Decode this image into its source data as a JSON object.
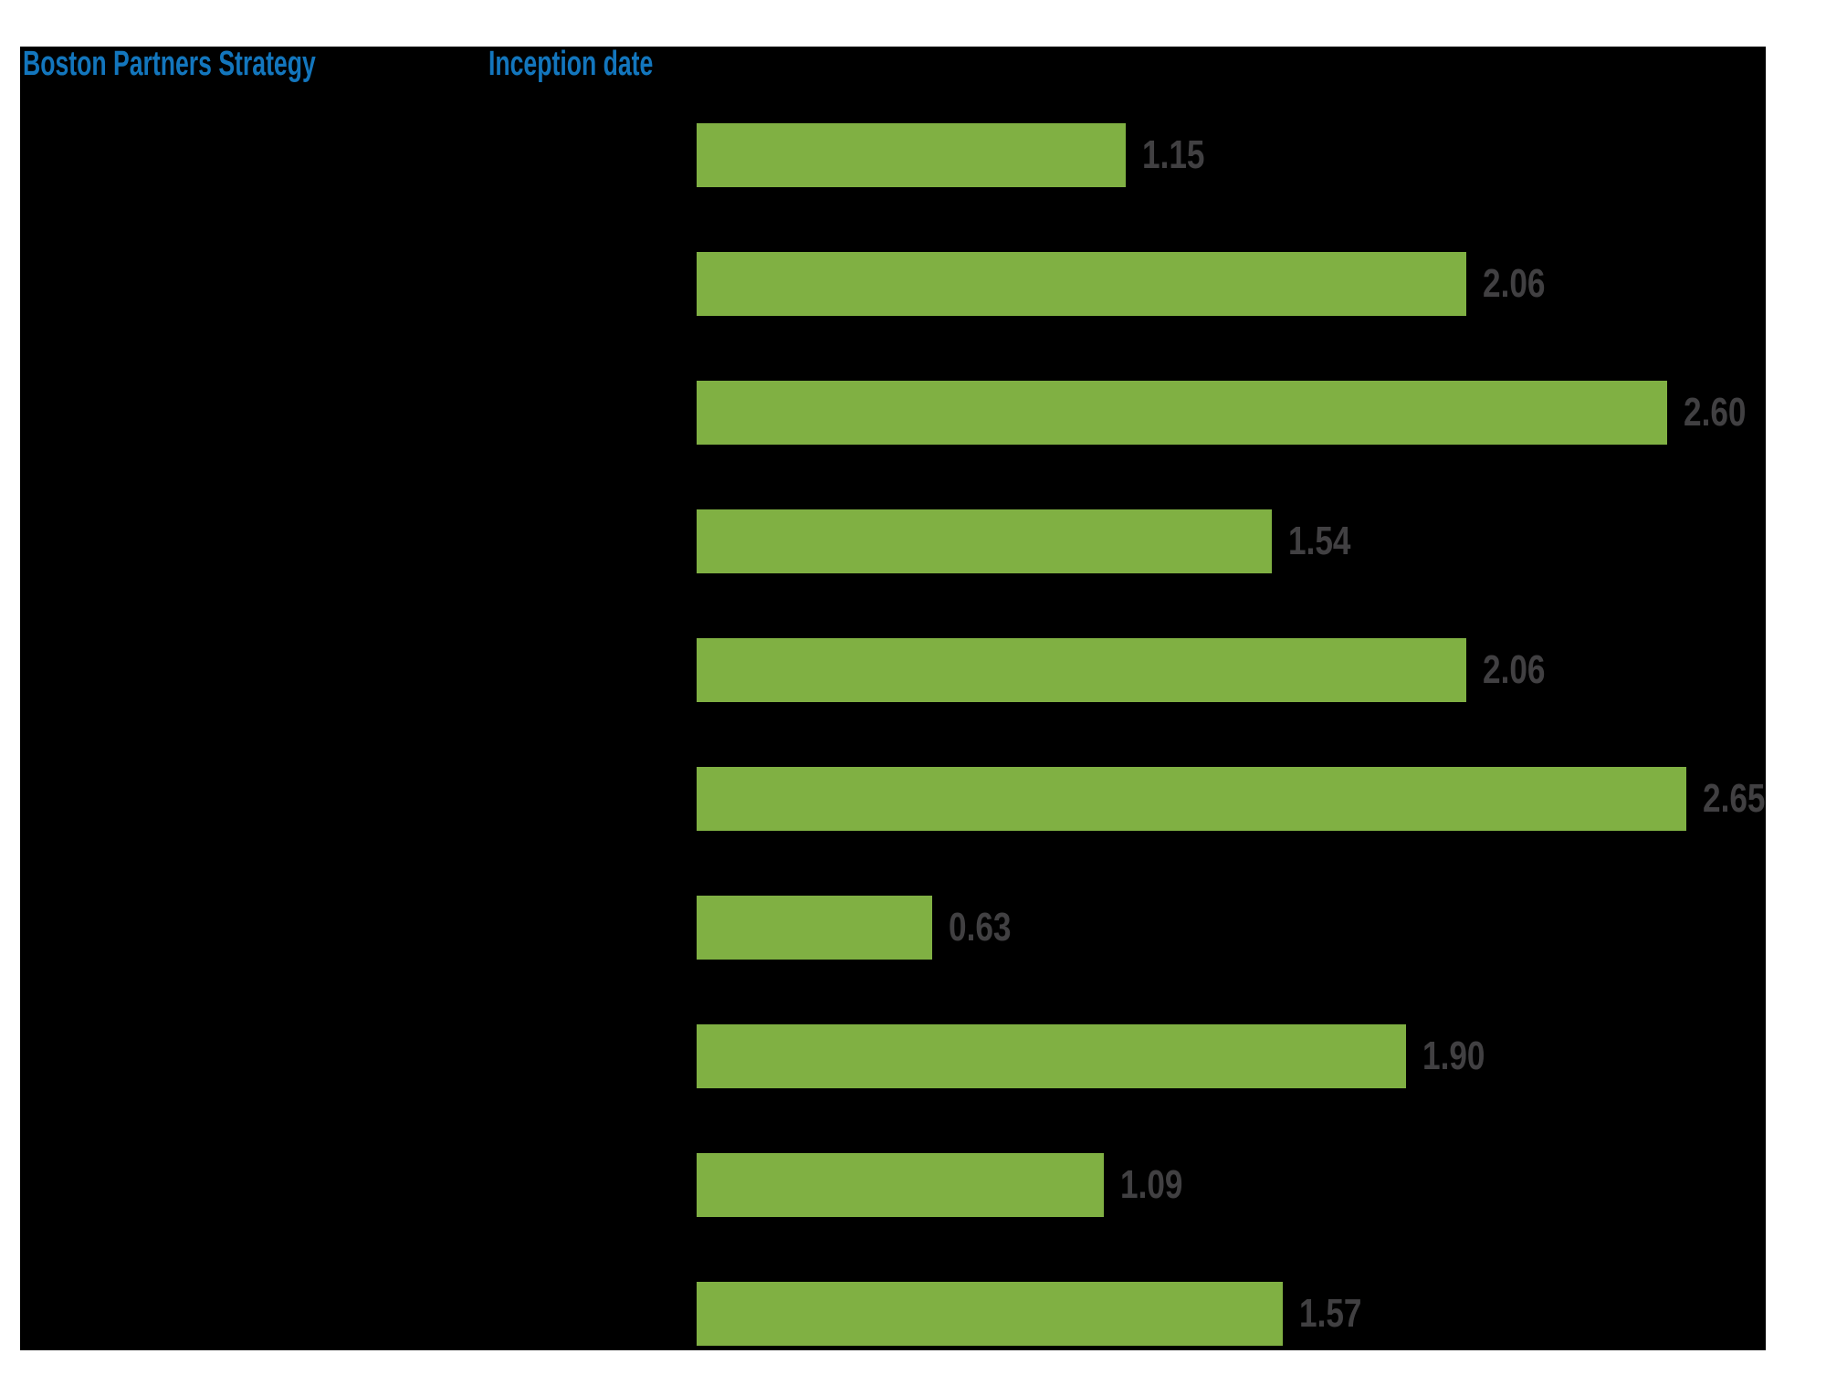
{
  "header": {
    "strategy_label": "Boston Partners Strategy",
    "inception_label": "Inception date"
  },
  "chart_data": {
    "type": "bar",
    "orientation": "horizontal",
    "values": [
      1.15,
      2.06,
      2.6,
      1.54,
      2.06,
      2.65,
      0.63,
      1.9,
      1.09,
      1.57
    ],
    "value_labels": [
      "1.15",
      "2.06",
      "2.60",
      "1.54",
      "2.06",
      "2.65",
      "0.63",
      "1.90",
      "1.09",
      "1.57"
    ],
    "categories_visible": false,
    "xlim": [
      0,
      2.86
    ],
    "grid": false,
    "legend": false,
    "value_labels_position": "outside-right"
  },
  "colors": {
    "page_background": "#ffffff",
    "panel_background": "#000000",
    "header_blue": "#1376bd",
    "bar_green": "#80b043",
    "value_gray": "#414042"
  }
}
